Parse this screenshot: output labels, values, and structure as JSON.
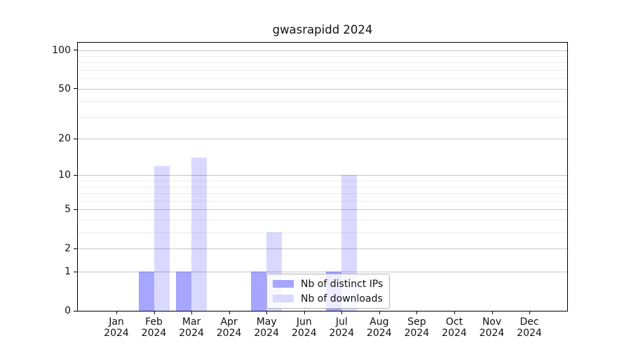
{
  "title": "gwasrapidd 2024",
  "chart_data": {
    "type": "bar",
    "title": "gwasrapidd 2024",
    "y_scale": "log1p",
    "year": "2024",
    "categories": [
      "Jan",
      "Feb",
      "Mar",
      "Apr",
      "May",
      "Jun",
      "Jul",
      "Aug",
      "Sep",
      "Oct",
      "Nov",
      "Dec"
    ],
    "series": [
      {
        "name": "Nb of distinct IPs",
        "fill": "rgba(0,0,255,0.35)",
        "legend_color": "#a6a6ff",
        "values": [
          0,
          1,
          1,
          0,
          1,
          0,
          1,
          0,
          0,
          0,
          0,
          0
        ]
      },
      {
        "name": "Nb of downloads",
        "fill": "rgba(0,0,255,0.15)",
        "legend_color": "#d9d9ff",
        "values": [
          0,
          12,
          14,
          0,
          3,
          0,
          10,
          0,
          0,
          0,
          0,
          0
        ]
      }
    ],
    "y_ticks": [
      0,
      1,
      2,
      5,
      10,
      20,
      50,
      100
    ],
    "y_minor_ticks": [
      3,
      4,
      6,
      7,
      8,
      9,
      30,
      40,
      60,
      70,
      80,
      90
    ],
    "ylim": [
      0,
      114
    ],
    "grid": {
      "major_color": "#c6c6c6",
      "minor_color": "#ededed"
    },
    "legend_position": "lower-center"
  }
}
